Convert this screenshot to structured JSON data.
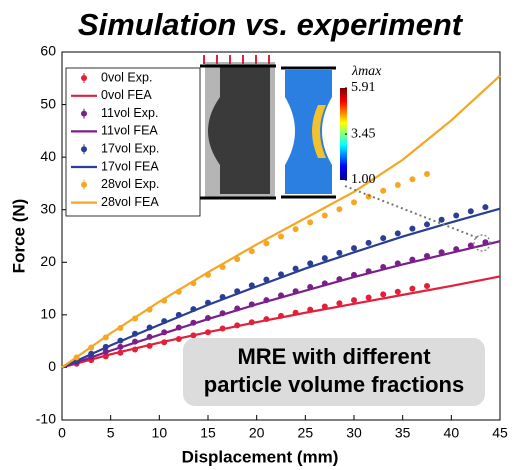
{
  "chart_data": {
    "type": "line",
    "title": "Simulation vs. experiment",
    "x_label": "Displacement (mm)",
    "y_label": "Force (N)",
    "xlim": [
      0,
      45
    ],
    "ylim": [
      -10,
      60
    ],
    "xticks": [
      0,
      5,
      10,
      15,
      20,
      25,
      30,
      35,
      40,
      45
    ],
    "yticks": [
      -10,
      0,
      10,
      20,
      30,
      40,
      50,
      60
    ],
    "series": [
      {
        "name": "0vol Exp.",
        "mode": "markers",
        "color": "#e3203a",
        "x": [
          1.5,
          3,
          4.5,
          6,
          7.5,
          9,
          10.5,
          12,
          13.5,
          15,
          16.5,
          18,
          19.5,
          21,
          22.5,
          24,
          25.5,
          27,
          28.5,
          30,
          31.5,
          33,
          34.5,
          36,
          37.5
        ],
        "values": [
          0.7,
          1.4,
          2.1,
          2.8,
          3.4,
          4.1,
          4.8,
          5.4,
          6.1,
          6.7,
          7.4,
          8.0,
          8.6,
          9.2,
          9.8,
          10.4,
          11.0,
          11.6,
          12.2,
          12.8,
          13.3,
          13.9,
          14.4,
          15.0,
          15.5
        ]
      },
      {
        "name": "0vol FEA",
        "mode": "line",
        "color": "#e3203a",
        "x": [
          0,
          5,
          10,
          15,
          20,
          25,
          30,
          35,
          40,
          45
        ],
        "values": [
          0,
          2.5,
          4.7,
          6.7,
          8.6,
          10.4,
          12.1,
          13.8,
          15.5,
          17.3
        ]
      },
      {
        "name": "11vol Exp.",
        "mode": "markers",
        "color": "#7b1f8a",
        "x": [
          1.5,
          3,
          4.5,
          6,
          7.5,
          9,
          10.5,
          12,
          13.5,
          15,
          16.5,
          18,
          19.5,
          21,
          22.5,
          24,
          25.5,
          27,
          28.5,
          30,
          31.5,
          33,
          34.5,
          36,
          37.5,
          39,
          40.5,
          42,
          43.5
        ],
        "values": [
          1.0,
          2.0,
          3.0,
          3.9,
          4.9,
          5.8,
          6.7,
          7.6,
          8.5,
          9.4,
          10.3,
          11.2,
          12.0,
          12.8,
          13.7,
          14.5,
          15.3,
          16.0,
          16.8,
          17.6,
          18.3,
          19.1,
          19.8,
          20.5,
          21.2,
          21.9,
          22.5,
          23.2,
          23.8
        ]
      },
      {
        "name": "11vol FEA",
        "mode": "line",
        "color": "#7b1f8a",
        "x": [
          0,
          5,
          10,
          15,
          20,
          25,
          30,
          35,
          40,
          45
        ],
        "values": [
          0,
          3.2,
          6.2,
          9.2,
          12.0,
          14.6,
          17.2,
          19.6,
          21.8,
          24.0
        ]
      },
      {
        "name": "17vol Exp.",
        "mode": "markers",
        "color": "#2a3f93",
        "x": [
          1.5,
          3,
          4.5,
          6,
          7.5,
          9,
          10.5,
          12,
          13.5,
          15,
          16.5,
          18,
          19.5,
          21,
          22.5,
          24,
          25.5,
          27,
          28.5,
          30,
          31.5,
          33,
          34.5,
          36,
          37.5,
          39,
          40.5,
          42,
          43.5
        ],
        "values": [
          1.3,
          2.6,
          3.9,
          5.1,
          6.4,
          7.6,
          8.8,
          10.0,
          11.1,
          12.3,
          13.4,
          14.5,
          15.6,
          16.7,
          17.7,
          18.8,
          19.8,
          20.8,
          21.8,
          22.7,
          23.7,
          24.6,
          25.5,
          26.4,
          27.2,
          28.1,
          28.9,
          29.7,
          30.5
        ]
      },
      {
        "name": "17vol FEA",
        "mode": "line",
        "color": "#2a3f93",
        "x": [
          0,
          5,
          10,
          15,
          20,
          25,
          30,
          35,
          40,
          45
        ],
        "values": [
          0,
          4.2,
          8.1,
          11.9,
          15.4,
          18.8,
          21.9,
          24.9,
          27.6,
          30.2
        ]
      },
      {
        "name": "28vol Exp.",
        "mode": "markers",
        "color": "#f5a623",
        "x": [
          1.5,
          3,
          4.5,
          6,
          7.5,
          9,
          10.5,
          12,
          13.5,
          15,
          16.5,
          18,
          19.5,
          21,
          22.5,
          24,
          25.5,
          27,
          28.5,
          30,
          31.5,
          33,
          34.5,
          36,
          37.5
        ],
        "values": [
          1.9,
          3.8,
          5.7,
          7.5,
          9.3,
          11.0,
          12.7,
          14.4,
          16.0,
          17.6,
          19.1,
          20.6,
          22.1,
          23.6,
          24.9,
          26.3,
          27.6,
          28.9,
          30.1,
          31.4,
          32.5,
          33.6,
          34.7,
          35.8,
          36.8
        ]
      },
      {
        "name": "28vol FEA",
        "mode": "line",
        "color": "#f5a623",
        "x": [
          0,
          5,
          10,
          15,
          20,
          25,
          30,
          35,
          40,
          45
        ],
        "values": [
          0,
          6.5,
          12.5,
          18.1,
          23.4,
          28.4,
          33.4,
          39.5,
          47.0,
          55.5
        ]
      }
    ],
    "colorbar": {
      "title": "λmax",
      "clim": [
        1.0,
        5.91
      ],
      "ticks": [
        {
          "value": 5.91,
          "label": "5.91"
        },
        {
          "value": 3.45,
          "label": "3.45"
        },
        {
          "value": 1.0,
          "label": "1.00"
        }
      ]
    },
    "annotation": [
      "MRE with different",
      "particle volume fractions"
    ]
  }
}
